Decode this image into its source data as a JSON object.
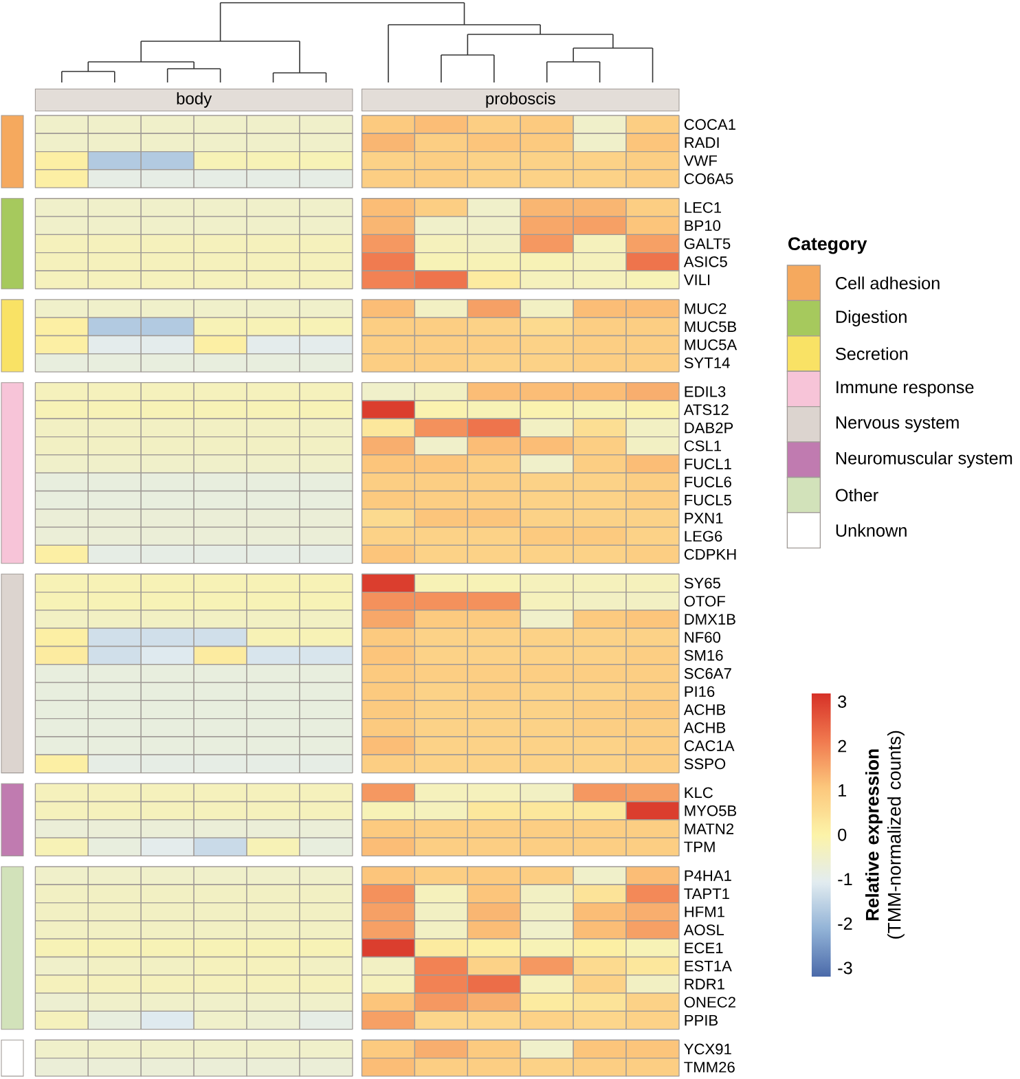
{
  "chart_data": [
    {
      "type": "heatmap",
      "annotations": [
        "body",
        "proboscis"
      ],
      "categories": [
        null,
        null,
        null,
        null,
        null,
        null,
        null,
        null,
        null,
        null,
        null,
        null
      ],
      "y_categories": [
        "COCA1",
        "RADI",
        "VWF",
        "CO6A5",
        "LEC1",
        "BP10",
        "GALT5",
        "ASIC5",
        "VILI",
        "MUC2",
        "MUC5B",
        "MUC5A",
        "SYT14",
        "EDIL3",
        "ATS12",
        "DAB2P",
        "CSL1",
        "FUCL1",
        "FUCL6",
        "FUCL5",
        "PXN1",
        "LEG6",
        "CDPKH",
        "SY65",
        "OTOF",
        "DMX1B",
        "NF60",
        "SM16",
        "SC6A7",
        "PI16",
        "ACHB",
        "ACHB",
        "CAC1A",
        "SSPO",
        "KLC",
        "MYO5B",
        "MATN2",
        "TPM",
        "P4HA1",
        "TAPT1",
        "HFM1",
        "AOSL",
        "ECE1",
        "EST1A",
        "RDR1",
        "ONEC2",
        "PPIB",
        "YCX91",
        "TMM26"
      ],
      "cells": [
        [
          -0.5,
          -0.5,
          -0.5,
          -0.5,
          -0.5,
          -0.5,
          1.0,
          1.2,
          0.9,
          1.0,
          -0.5,
          0.9
        ],
        [
          -0.5,
          -0.5,
          -0.5,
          -0.5,
          -0.5,
          -0.5,
          1.3,
          0.9,
          1.1,
          1.0,
          -0.5,
          1.1
        ],
        [
          0.1,
          -1.7,
          -1.7,
          -0.2,
          -0.2,
          -0.2,
          0.8,
          0.9,
          0.8,
          0.8,
          0.8,
          0.9
        ],
        [
          0.1,
          -0.9,
          -0.9,
          -0.9,
          -0.9,
          -0.9,
          0.9,
          0.9,
          0.8,
          0.8,
          0.8,
          0.9
        ],
        [
          -0.5,
          -0.5,
          -0.5,
          -0.5,
          -0.5,
          -0.5,
          1.2,
          0.9,
          -0.5,
          1.3,
          1.3,
          0.9
        ],
        [
          -0.5,
          -0.5,
          -0.5,
          -0.5,
          -0.5,
          -0.5,
          1.3,
          -0.5,
          -0.5,
          1.5,
          1.6,
          1.1
        ],
        [
          -0.3,
          -0.3,
          -0.3,
          -0.3,
          -0.3,
          -0.3,
          1.7,
          -0.3,
          -0.4,
          1.7,
          -0.3,
          1.6
        ],
        [
          -0.3,
          -0.3,
          -0.3,
          -0.3,
          -0.3,
          -0.3,
          2.1,
          -0.2,
          -0.2,
          -0.2,
          -0.3,
          2.2
        ],
        [
          -0.3,
          -0.3,
          -0.3,
          -0.3,
          -0.3,
          -0.3,
          2.0,
          2.2,
          0.2,
          -0.3,
          -0.3,
          -0.2
        ],
        [
          -0.5,
          -0.5,
          -0.5,
          -0.5,
          -0.5,
          -0.5,
          1.2,
          -0.4,
          1.6,
          -0.4,
          1.2,
          1.2
        ],
        [
          0.1,
          -1.7,
          -1.7,
          -0.2,
          -0.2,
          -0.2,
          0.9,
          0.9,
          0.8,
          0.6,
          0.9,
          0.9
        ],
        [
          0.1,
          -1.0,
          -1.0,
          0.1,
          -1.0,
          -1.0,
          0.9,
          0.9,
          0.9,
          0.8,
          0.9,
          0.9
        ],
        [
          -0.8,
          -0.8,
          -0.8,
          -0.8,
          -0.8,
          -0.8,
          0.9,
          0.9,
          0.8,
          0.8,
          0.9,
          0.9
        ],
        [
          -0.3,
          -0.3,
          -0.3,
          -0.3,
          -0.3,
          -0.3,
          -0.5,
          -0.4,
          1.2,
          1.2,
          1.2,
          1.4
        ],
        [
          -0.2,
          -0.2,
          -0.2,
          -0.2,
          -0.2,
          -0.2,
          3.0,
          -0.1,
          -0.2,
          -0.1,
          -0.2,
          -0.1
        ],
        [
          -0.4,
          -0.4,
          -0.4,
          -0.4,
          -0.4,
          -0.4,
          0.3,
          1.8,
          2.2,
          -0.4,
          0.5,
          -0.4
        ],
        [
          -0.4,
          -0.4,
          -0.4,
          -0.4,
          -0.4,
          -0.4,
          1.4,
          -0.5,
          1.2,
          1.2,
          0.9,
          -0.4
        ],
        [
          -0.5,
          -0.5,
          -0.5,
          -0.5,
          -0.5,
          -0.5,
          1.1,
          1.1,
          0.9,
          -0.5,
          0.9,
          1.2
        ],
        [
          -0.8,
          -0.8,
          -0.8,
          -0.8,
          -0.8,
          -0.8,
          0.9,
          0.9,
          0.9,
          0.8,
          0.8,
          0.9
        ],
        [
          -0.8,
          -0.8,
          -0.8,
          -0.8,
          -0.8,
          -0.8,
          1.0,
          0.9,
          0.9,
          0.8,
          0.8,
          0.9
        ],
        [
          -0.7,
          -0.7,
          -0.7,
          -0.7,
          -0.7,
          -0.7,
          0.6,
          1.1,
          1.1,
          0.8,
          0.8,
          0.8
        ],
        [
          -0.7,
          -0.7,
          -0.7,
          -0.7,
          -0.7,
          -0.7,
          0.8,
          0.8,
          0.8,
          1.0,
          1.0,
          0.8
        ],
        [
          0.1,
          -0.9,
          -0.9,
          -0.9,
          -0.9,
          -0.9,
          1.1,
          0.8,
          0.8,
          0.8,
          0.8,
          0.9
        ],
        [
          -0.2,
          -0.2,
          -0.2,
          -0.2,
          -0.2,
          -0.2,
          3.0,
          -0.2,
          -0.2,
          -0.3,
          -0.3,
          -0.3
        ],
        [
          -0.2,
          -0.2,
          -0.2,
          -0.2,
          -0.2,
          -0.2,
          1.8,
          1.8,
          1.8,
          -0.3,
          -0.4,
          -0.4
        ],
        [
          -0.4,
          -0.4,
          -0.4,
          -0.4,
          -0.4,
          -0.4,
          1.5,
          1.0,
          1.0,
          -0.5,
          1.0,
          1.1
        ],
        [
          0.1,
          -1.3,
          -1.3,
          -1.3,
          -0.2,
          -0.2,
          1.0,
          0.8,
          0.8,
          0.8,
          0.8,
          0.8
        ],
        [
          0.2,
          -1.3,
          -1.1,
          0.2,
          -1.2,
          -1.2,
          1.1,
          0.8,
          0.8,
          0.8,
          0.8,
          0.9
        ],
        [
          -0.8,
          -0.8,
          -0.8,
          -0.8,
          -0.8,
          -0.8,
          1.0,
          0.9,
          0.9,
          0.9,
          0.9,
          0.9
        ],
        [
          -0.8,
          -0.8,
          -0.8,
          -0.8,
          -0.8,
          -0.8,
          1.0,
          0.8,
          0.9,
          0.8,
          0.8,
          0.9
        ],
        [
          -0.8,
          -0.8,
          -0.8,
          -0.8,
          -0.8,
          -0.8,
          1.0,
          0.8,
          0.8,
          0.8,
          0.9,
          1.0
        ],
        [
          -0.8,
          -0.8,
          -0.8,
          -0.8,
          -0.8,
          -0.8,
          1.0,
          0.8,
          0.8,
          0.8,
          0.9,
          0.9
        ],
        [
          -0.8,
          -0.8,
          -0.8,
          -0.8,
          -0.8,
          -0.8,
          1.2,
          0.8,
          0.8,
          0.8,
          0.8,
          0.9
        ],
        [
          0.1,
          -0.9,
          -0.9,
          -0.9,
          -0.9,
          -0.9,
          0.9,
          0.8,
          0.8,
          0.8,
          0.8,
          0.9
        ],
        [
          -0.3,
          -0.3,
          -0.3,
          -0.3,
          -0.3,
          -0.3,
          1.7,
          -0.3,
          -0.3,
          -0.4,
          1.7,
          1.6
        ],
        [
          -0.3,
          -0.3,
          -0.3,
          -0.3,
          -0.3,
          -0.3,
          -0.2,
          -0.3,
          0.3,
          0.3,
          0.3,
          3.0
        ],
        [
          -0.7,
          -0.7,
          -0.7,
          -0.7,
          -0.7,
          -0.7,
          1.0,
          0.9,
          0.9,
          0.9,
          0.9,
          0.9
        ],
        [
          -0.2,
          -0.8,
          -1.0,
          -1.4,
          -0.2,
          -0.8,
          1.2,
          0.9,
          0.9,
          0.9,
          0.9,
          0.9
        ],
        [
          -0.5,
          -0.5,
          -0.5,
          -0.5,
          -0.5,
          -0.5,
          1.1,
          0.9,
          1.0,
          0.9,
          -0.5,
          1.2
        ],
        [
          -0.4,
          -0.4,
          -0.4,
          -0.4,
          -0.4,
          -0.4,
          1.8,
          -0.3,
          1.1,
          -0.4,
          0.4,
          1.9
        ],
        [
          -0.4,
          -0.4,
          -0.4,
          -0.4,
          -0.4,
          -0.4,
          1.6,
          -0.4,
          1.3,
          -0.4,
          1.2,
          1.4
        ],
        [
          -0.4,
          -0.4,
          -0.4,
          -0.4,
          -0.4,
          -0.4,
          1.6,
          -0.4,
          1.2,
          -0.5,
          1.2,
          1.6
        ],
        [
          -0.2,
          -0.2,
          -0.2,
          -0.2,
          -0.2,
          -0.2,
          3.0,
          0.2,
          0.1,
          -0.2,
          0.1,
          -0.2
        ],
        [
          -0.5,
          -0.4,
          -0.4,
          -0.3,
          -0.3,
          -0.4,
          -0.4,
          2.0,
          0.8,
          1.7,
          0.6,
          0.3
        ],
        [
          -0.3,
          -0.3,
          -0.3,
          -0.3,
          -0.3,
          -0.3,
          -0.3,
          2.0,
          2.3,
          -0.3,
          0.8,
          -0.4
        ],
        [
          -0.6,
          -0.5,
          -0.5,
          -0.5,
          -0.5,
          -0.5,
          1.1,
          1.7,
          1.4,
          0.2,
          0.4,
          0.8
        ],
        [
          -0.3,
          -0.8,
          -1.1,
          -0.5,
          -0.6,
          -0.9,
          1.6,
          0.7,
          0.7,
          0.8,
          0.7,
          0.8
        ],
        [
          -0.5,
          -0.5,
          -0.5,
          -0.5,
          -0.5,
          -0.5,
          1.0,
          1.4,
          1.0,
          -0.5,
          1.1,
          1.1
        ],
        [
          -0.7,
          -0.7,
          -0.7,
          -0.7,
          -0.7,
          -0.7,
          1.2,
          0.9,
          0.9,
          0.8,
          0.9,
          0.9
        ]
      ],
      "clim": [
        -3.2,
        3.2
      ],
      "cticks": [
        -3,
        -2,
        -1,
        0,
        1,
        2,
        3
      ],
      "clabel": "**Relative expression** (TMM-normalized counts)"
    },
    {
      "type": "other",
      "legend_title": "Category",
      "categories": [
        "Cell adhesion",
        "Digestion",
        "Secretion",
        "Immune response",
        "Nervous system",
        "Neuromuscular system",
        "Other",
        "Unknown"
      ],
      "colors": [
        "#f5a95e",
        "#a6c95d",
        "#f9e265",
        "#f7c4d8",
        "#dcd4cf",
        "#c07bb0",
        "#d2e2ba",
        "#ffffff"
      ]
    }
  ]
}
